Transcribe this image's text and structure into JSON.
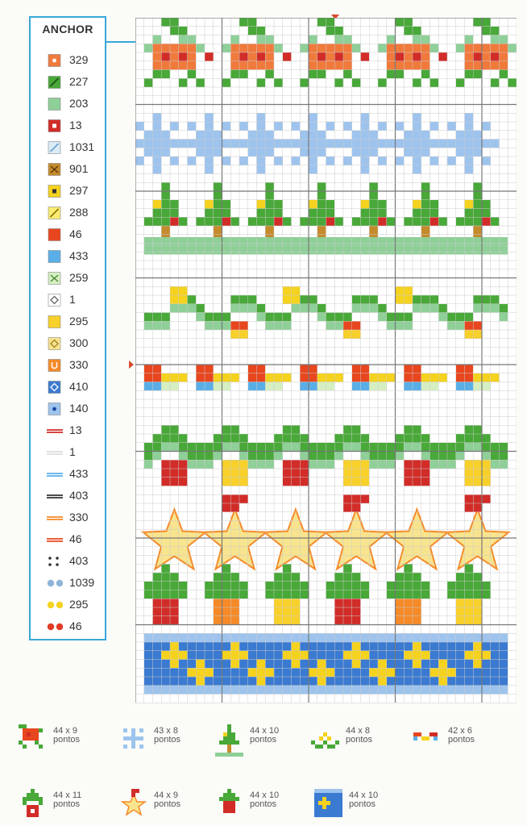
{
  "legend": {
    "title": "ANCHOR",
    "items": [
      {
        "code": "329",
        "sym": "box-dot",
        "fill": "#f07a3c",
        "mark": "#ffffff"
      },
      {
        "code": "227",
        "sym": "box-slash",
        "fill": "#48a838",
        "mark": "#1c4f18"
      },
      {
        "code": "203",
        "sym": "box",
        "fill": "#8fcf98",
        "mark": ""
      },
      {
        "code": "13",
        "sym": "box-sq",
        "fill": "#d22c28",
        "mark": "#ffffff"
      },
      {
        "code": "1031",
        "sym": "box-slash",
        "fill": "#dcecf7",
        "mark": "#6a9fd0"
      },
      {
        "code": "901",
        "sym": "box-x",
        "fill": "#c48a2c",
        "mark": "#5a3a08"
      },
      {
        "code": "297",
        "sym": "box-sq",
        "fill": "#f5d21e",
        "mark": "#333333"
      },
      {
        "code": "288",
        "sym": "box-slash",
        "fill": "#faec72",
        "mark": "#8a7000"
      },
      {
        "code": "46",
        "sym": "box",
        "fill": "#e8461e",
        "mark": ""
      },
      {
        "code": "433",
        "sym": "box",
        "fill": "#5aaee8",
        "mark": ""
      },
      {
        "code": "259",
        "sym": "box-x",
        "fill": "#d6efc2",
        "mark": "#4a8a38"
      },
      {
        "code": "1",
        "sym": "box-diamond",
        "fill": "#ffffff",
        "mark": "#666666"
      },
      {
        "code": "295",
        "sym": "box",
        "fill": "#f8d02a",
        "mark": ""
      },
      {
        "code": "300",
        "sym": "box-diamond",
        "fill": "#f8e48e",
        "mark": "#a08020"
      },
      {
        "code": "330",
        "sym": "box-u",
        "fill": "#f58a28",
        "mark": "#ffffff"
      },
      {
        "code": "410",
        "sym": "box-diamond",
        "fill": "#3a7ad0",
        "mark": "#ffffff"
      },
      {
        "code": "140",
        "sym": "box-dot",
        "fill": "#9ec4ee",
        "mark": "#1a4aa0"
      },
      {
        "code": "13",
        "sym": "line2",
        "fill": "#d22c28",
        "mark": ""
      },
      {
        "code": "1",
        "sym": "line2",
        "fill": "#dddddd",
        "mark": ""
      },
      {
        "code": "433",
        "sym": "line2",
        "fill": "#5aaee8",
        "mark": ""
      },
      {
        "code": "403",
        "sym": "line2",
        "fill": "#333333",
        "mark": ""
      },
      {
        "code": "330",
        "sym": "line2",
        "fill": "#f58a28",
        "mark": ""
      },
      {
        "code": "46",
        "sym": "line2",
        "fill": "#e8461e",
        "mark": ""
      },
      {
        "code": "403",
        "sym": "dots4",
        "fill": "#333333",
        "mark": ""
      },
      {
        "code": "1039",
        "sym": "dots2",
        "fill": "#8eb4d8",
        "mark": ""
      },
      {
        "code": "295",
        "sym": "dots2",
        "fill": "#f5d21e",
        "mark": ""
      },
      {
        "code": "46",
        "sym": "dots2",
        "fill": "#e23a24",
        "mark": ""
      }
    ]
  },
  "motifs": [
    {
      "size": "44 x 9",
      "unit": "pontos",
      "icon": "poinsettia-icon"
    },
    {
      "size": "43 x 8",
      "unit": "pontos",
      "icon": "snowflake-icon"
    },
    {
      "size": "44 x 10",
      "unit": "pontos",
      "icon": "christmas-tree-icon"
    },
    {
      "size": "44 x 8",
      "unit": "pontos",
      "icon": "garland-icon"
    },
    {
      "size": "42 x 6",
      "unit": "pontos",
      "icon": "gift-row-icon"
    },
    {
      "size": "44 x 11",
      "unit": "pontos",
      "icon": "tree-ornament-icon"
    },
    {
      "size": "44 x 9",
      "unit": "pontos",
      "icon": "star-santa-icon"
    },
    {
      "size": "44 x 10",
      "unit": "pontos",
      "icon": "bell-icon"
    },
    {
      "size": "44 x 10",
      "unit": "pontos",
      "icon": "blue-band-icon"
    }
  ],
  "colors": {
    "legend_border": "#3aa7d8",
    "grid_line": "#cccccc",
    "grid_major": "#777777"
  }
}
